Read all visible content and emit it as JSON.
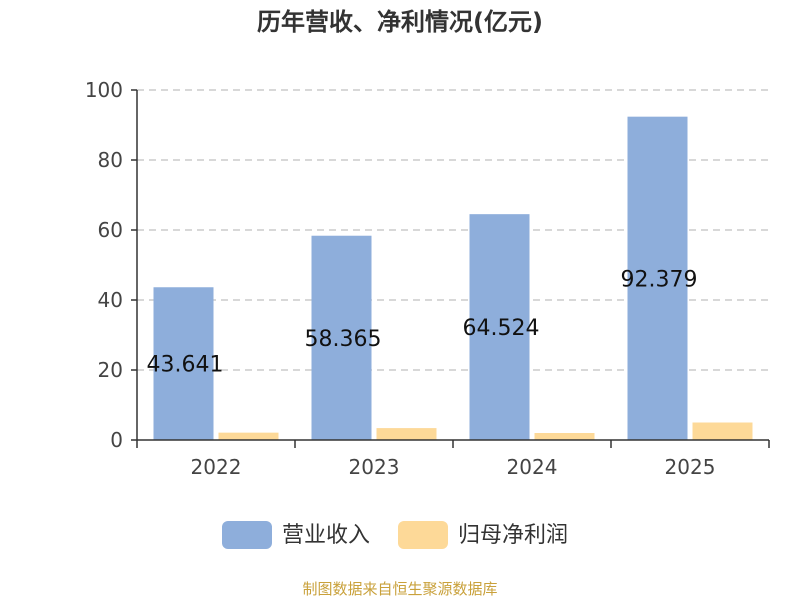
{
  "chart_data": {
    "type": "bar",
    "title": "历年营收、净利情况(亿元)",
    "categories": [
      "2022",
      "2023",
      "2024",
      "2025"
    ],
    "series": [
      {
        "name": "营业收入",
        "values": [
          43.641,
          58.365,
          64.524,
          92.379
        ],
        "labels": [
          "43.641",
          "58.365",
          "64.524",
          "92.379"
        ],
        "color": "#8eaedb"
      },
      {
        "name": "归母净利润",
        "values": [
          2.1,
          3.4,
          2.0,
          5.0
        ],
        "color": "#fdd998"
      }
    ],
    "ylim": [
      0,
      100
    ],
    "yticks": [
      "0",
      "20",
      "40",
      "60",
      "80",
      "100"
    ],
    "grid": true,
    "legend": "bottom",
    "xlabel": "",
    "ylabel": ""
  },
  "footer": {
    "source": "制图数据来自恒生聚源数据库"
  },
  "colors": {
    "grid": "#cccccc",
    "axis": "#333333",
    "source": "#c9a13b"
  }
}
